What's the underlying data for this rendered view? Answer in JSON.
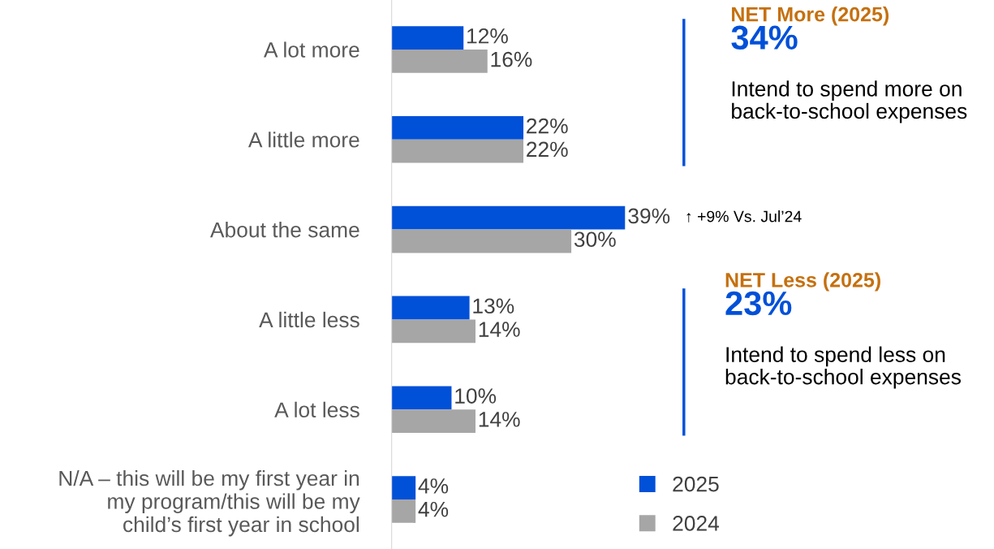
{
  "chart_data": {
    "type": "bar",
    "orientation": "horizontal",
    "categories": [
      "A lot more",
      "A little more",
      "About the same",
      "A little less",
      "A lot less",
      "N/A – this will be my first year in\nmy program/this will be my\nchild’s first year in school"
    ],
    "series": [
      {
        "name": "2025",
        "color": "#0050d8",
        "values": [
          12,
          22,
          39,
          13,
          10,
          4
        ],
        "value_labels": [
          "12%",
          "22%",
          "39%",
          "13%",
          "10%",
          "4%"
        ]
      },
      {
        "name": "2024",
        "color": "#a6a6a6",
        "values": [
          16,
          22,
          30,
          14,
          14,
          4
        ],
        "value_labels": [
          "16%",
          "22%",
          "30%",
          "14%",
          "14%",
          "4%"
        ]
      }
    ],
    "legend": "bottom",
    "grid": false,
    "annotations": [
      "NET More (2025)",
      "34%",
      "Intend to spend more on back-to-school expenses",
      "NET Less (2025)",
      "23%",
      "Intend to spend less on back-to-school expenses",
      "↑ +9% Vs. Jul’24"
    ]
  }
}
